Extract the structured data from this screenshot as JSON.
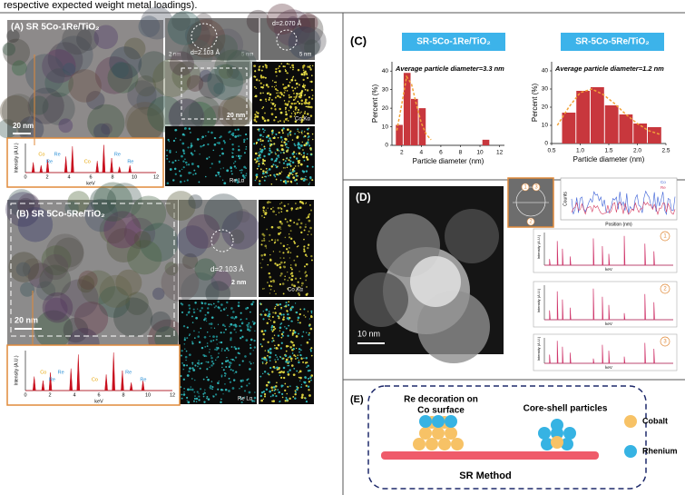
{
  "caption_fragment": "respective expected weight metal loadings).",
  "panel_a": {
    "label": "(A) SR 5Co-1Re/TiO₂",
    "scale_tem": "20 nm",
    "d1": "d=2.103 Å",
    "d2": "d=2.070 Å",
    "scale_hr1": "2 nm",
    "scale_hr2": "5 nm",
    "scale_hr3": "5 nm",
    "scale_map": "20 nm",
    "co_map": "Co Kα",
    "re_map": "Re Lα",
    "eds": {
      "ylabel": "Intensity (A.U.)",
      "xlabel": "keV",
      "ticks": [
        "0",
        "2",
        "4",
        "6",
        "8",
        "10",
        "12"
      ],
      "peaks": [
        "Co",
        "Re",
        "Re",
        "Co",
        "Re",
        "Re"
      ]
    }
  },
  "panel_b": {
    "label": "(B) SR 5Co-5Re/TiO₂",
    "scale_tem": "20 nm",
    "d1": "d=2.103 Å",
    "scale_hr1": "2 nm",
    "co_map": "Co Kα",
    "re_map": "Re Lα",
    "eds": {
      "ylabel": "Intensity (A.U.)",
      "xlabel": "keV",
      "ticks": [
        "0",
        "2",
        "4",
        "6",
        "8",
        "10",
        "12"
      ],
      "peaks": [
        "Co",
        "Re",
        "Re",
        "Co",
        "Re",
        "Re"
      ]
    }
  },
  "panel_c": {
    "label": "(C)"
  },
  "chart_data": [
    {
      "type": "bar",
      "title": "SR-5Co-1Re/TiO₂",
      "subtitle": "Average particle diameter=3.3 nm",
      "x_label": "Particle diameter (nm)",
      "y_label": "Percent (%)",
      "x": [
        1.75,
        2.55,
        3.3,
        4.1,
        10.6
      ],
      "values": [
        11,
        39,
        25,
        20,
        3
      ],
      "color": "#c8373d",
      "xlim": [
        1,
        12.5
      ],
      "xticks": [
        2,
        4,
        6,
        8,
        10,
        12
      ],
      "ylim": [
        0,
        45
      ],
      "yticks": [
        0,
        10,
        20,
        30,
        40
      ],
      "fit": {
        "x": [
          1.5,
          2,
          2.5,
          3,
          3.5,
          4,
          4.5,
          5
        ],
        "values": [
          8,
          22,
          37,
          33,
          22,
          12,
          6,
          3
        ],
        "color": "#f2a33a"
      }
    },
    {
      "type": "bar",
      "title": "SR-5Co-5Re/TiO₂",
      "subtitle": "Average particle diameter=1.2 nm",
      "x_label": "Particle diameter (nm)",
      "y_label": "Percent (%)",
      "x": [
        0.8,
        1.05,
        1.3,
        1.55,
        1.8,
        2.05,
        2.3
      ],
      "values": [
        17,
        29,
        31,
        21,
        16,
        11,
        9
      ],
      "color": "#c8373d",
      "xlim": [
        0.5,
        2.5
      ],
      "xticks": [
        0.5,
        {
          "value": 1,
          "label": "1.0"
        },
        1.5,
        {
          "value": 2,
          "label": "2.0"
        },
        2.5
      ],
      "ylim": [
        0,
        45
      ],
      "yticks": [
        0,
        10,
        20,
        30,
        40
      ],
      "fit": {
        "x": [
          0.6,
          0.8,
          1.0,
          1.2,
          1.4,
          1.6,
          1.8,
          2.0,
          2.2,
          2.4
        ],
        "values": [
          10,
          20,
          28,
          30,
          27,
          22,
          16,
          11,
          7,
          5
        ],
        "color": "#f2a33a"
      }
    }
  ],
  "panel_d": {
    "label": "(D)",
    "scale": "10 nm",
    "points": [
      "1",
      "3",
      "2"
    ],
    "profile": {
      "ylabel": "Counts",
      "xlabel": "Position (nm)",
      "legend": [
        "Co",
        "Re"
      ]
    },
    "spectra": [
      {
        "marker": "1",
        "ylabel": "Intensity (A.U.)",
        "xlabel": "keV"
      },
      {
        "marker": "2",
        "ylabel": "Intensity (A.U.)",
        "xlabel": "keV"
      },
      {
        "marker": "3",
        "ylabel": "Intensity (A.U.)",
        "xlabel": "keV"
      }
    ]
  },
  "panel_e": {
    "label": "(E)",
    "left_caption": [
      "Re decoration on",
      "Co surface"
    ],
    "right_caption": "Core-shell particles",
    "legend": [
      "Cobalt",
      "Rhenium"
    ],
    "method": "SR Method"
  }
}
